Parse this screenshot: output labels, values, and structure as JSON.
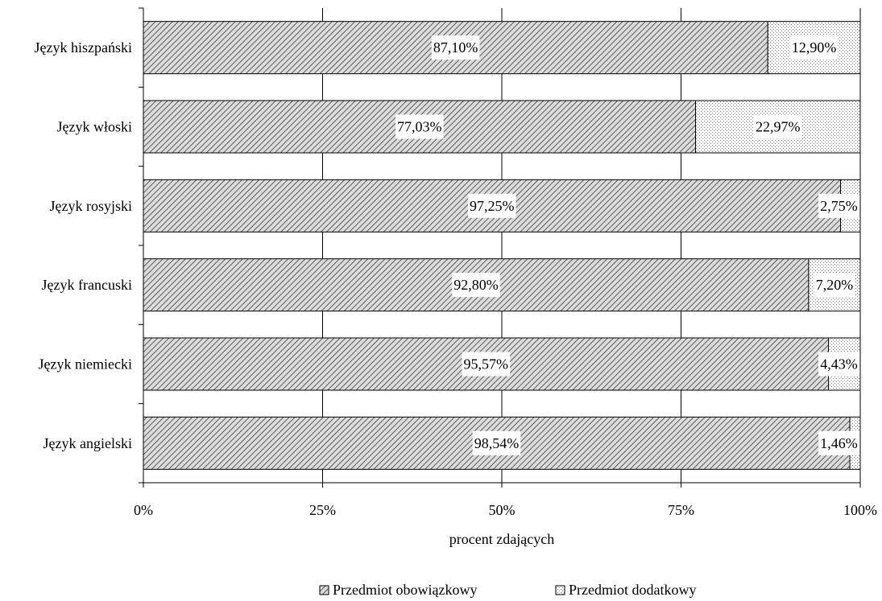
{
  "chart_data": {
    "type": "bar",
    "stacked": true,
    "orientation": "horizontal",
    "categories": [
      "Język hiszpański",
      "Język włoski",
      "Język rosyjski",
      "Język francuski",
      "Język niemiecki",
      "Język angielski"
    ],
    "series": [
      {
        "name": "Przedmiot obowiązkowy",
        "values": [
          87.1,
          77.03,
          97.25,
          92.8,
          95.57,
          98.54
        ],
        "labels": [
          "87,10%",
          "77,03%",
          "97,25%",
          "92,80%",
          "95,57%",
          "98,54%"
        ],
        "pattern": "diagonal-hatch"
      },
      {
        "name": "Przedmiot dodatkowy",
        "values": [
          12.9,
          22.97,
          2.75,
          7.2,
          4.43,
          1.46
        ],
        "labels": [
          "12,90%",
          "22,97%",
          "2,75%",
          "7,20%",
          "4,43%",
          "1,46%"
        ],
        "pattern": "dots"
      }
    ],
    "xlabel": "procent zdających",
    "xlim": [
      0,
      100
    ],
    "xticks": [
      0,
      25,
      50,
      75,
      100
    ],
    "xtick_labels": [
      "0%",
      "25%",
      "50%",
      "75%",
      "100%"
    ],
    "grid": "vertical",
    "legend_position": "bottom-center"
  }
}
